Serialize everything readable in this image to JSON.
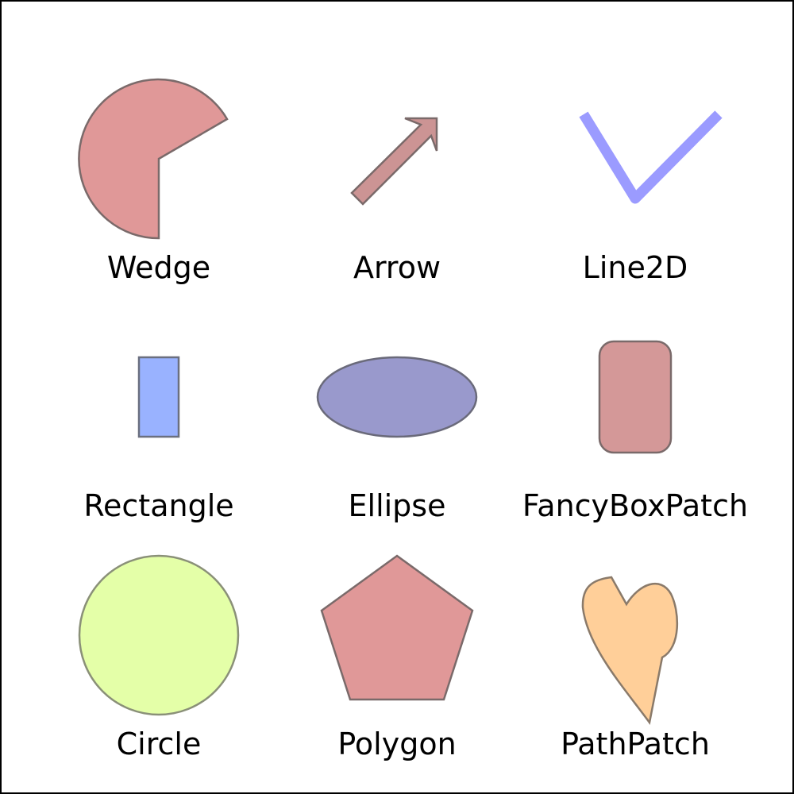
{
  "shapes": [
    {
      "label": "Wedge",
      "fill": "#e09898",
      "stroke": "#7a6a6a"
    },
    {
      "label": "Arrow",
      "fill": "#cc9494",
      "stroke": "#7a6a6a"
    },
    {
      "label": "Line2D",
      "stroke": "#9b9bff"
    },
    {
      "label": "Rectangle",
      "fill": "#99b2ff",
      "stroke": "#6a6f7f"
    },
    {
      "label": "Ellipse",
      "fill": "#9999cc",
      "stroke": "#6a6a7a"
    },
    {
      "label": "FancyBoxPatch",
      "fill": "#d49898",
      "stroke": "#7a6a6a"
    },
    {
      "label": "Circle",
      "fill": "#e4ffa8",
      "stroke": "#8a9078"
    },
    {
      "label": "Polygon",
      "fill": "#e09898",
      "stroke": "#7a6a6a"
    },
    {
      "label": "PathPatch",
      "fill": "#ffcf99",
      "stroke": "#8a7a6a"
    }
  ]
}
